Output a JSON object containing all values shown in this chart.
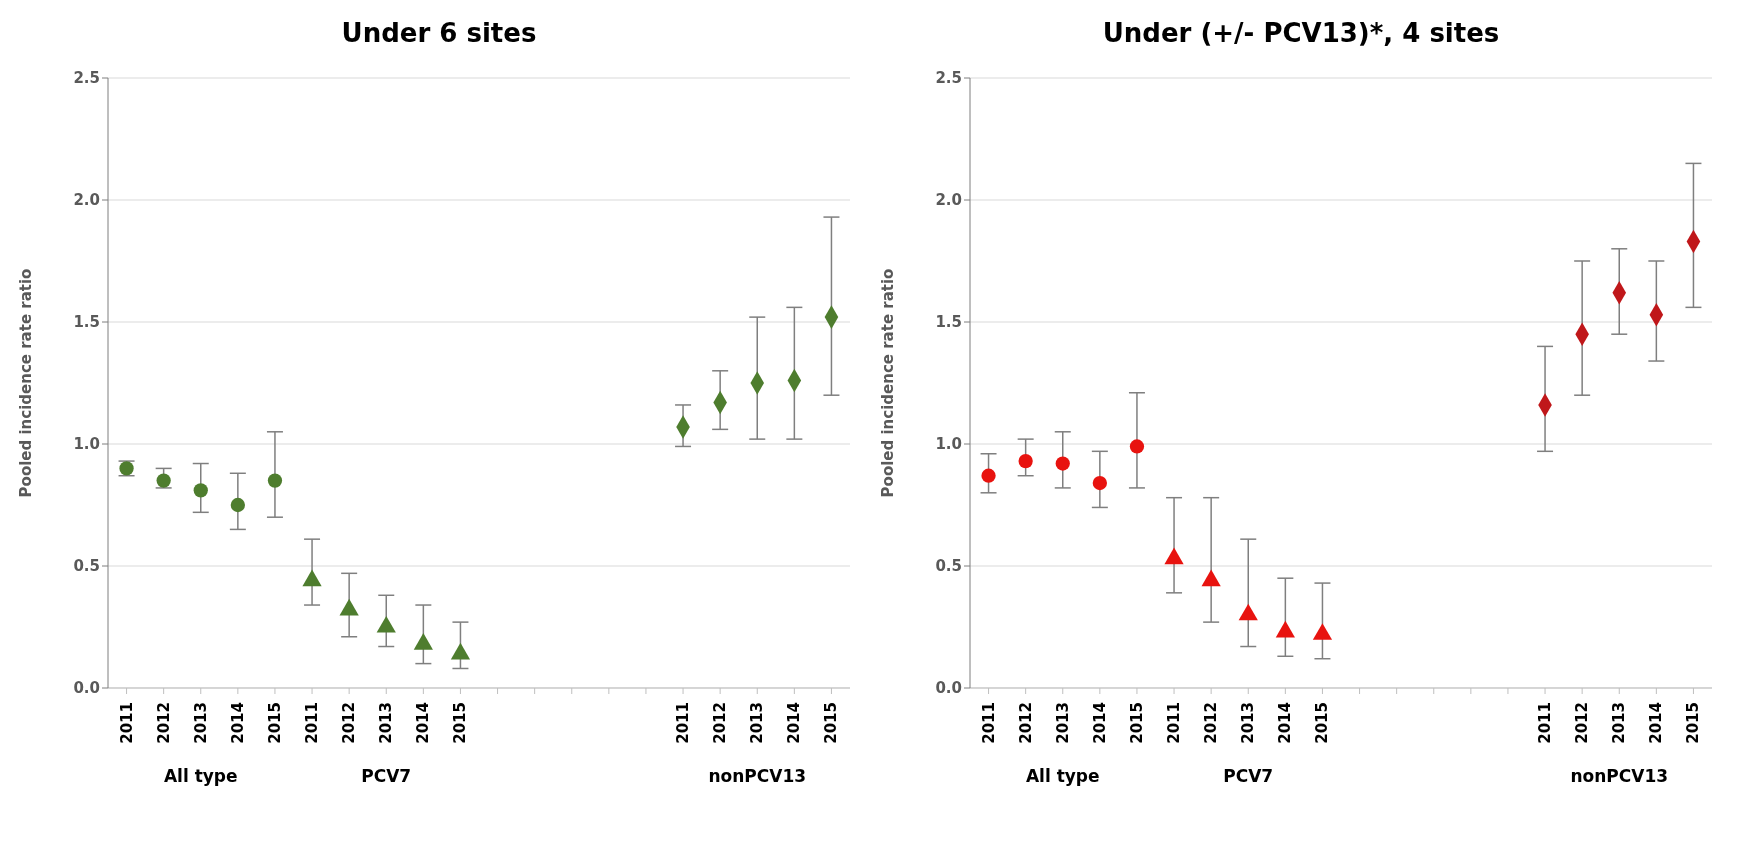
{
  "chart_data": [
    {
      "type": "scatter",
      "title": "Under 6 sites",
      "ylabel": "Pooled incidence rate ratio",
      "categories": [
        "2011",
        "2012",
        "2013",
        "2014",
        "2015",
        "2011",
        "2012",
        "2013",
        "2014",
        "2015",
        null,
        null,
        null,
        null,
        null,
        "2011",
        "2012",
        "2013",
        "2014",
        "2015"
      ],
      "ylim": [
        0,
        2.5
      ],
      "yticks": [
        {
          "value": 0,
          "label": "0.0"
        },
        {
          "value": 0.5,
          "label": "0.5"
        },
        {
          "value": 1,
          "label": "1.0"
        },
        {
          "value": 1.5,
          "label": "1.5"
        },
        {
          "value": 2,
          "label": "2.0"
        },
        {
          "value": 2.5,
          "label": "2.5"
        }
      ],
      "grid": "y",
      "legend": false,
      "annotations": [
        "All type",
        "PCV7",
        "nonPCV13"
      ],
      "series": [
        {
          "color": "#4e7d2e",
          "marker": "circle",
          "values": [
            0.9,
            0.85,
            0.81,
            0.75,
            0.85,
            null,
            null,
            null,
            null,
            null,
            null,
            null,
            null,
            null,
            null,
            null,
            null,
            null,
            null,
            null
          ],
          "errors": [
            [
              0.87,
              0.93
            ],
            [
              0.82,
              0.9
            ],
            [
              0.72,
              0.92
            ],
            [
              0.65,
              0.88
            ],
            [
              0.7,
              1.05
            ],
            null,
            null,
            null,
            null,
            null,
            null,
            null,
            null,
            null,
            null,
            null,
            null,
            null,
            null,
            null
          ]
        },
        {
          "color": "#4e7d2e",
          "marker": "triangle",
          "values": [
            null,
            null,
            null,
            null,
            null,
            0.44,
            0.32,
            0.25,
            0.18,
            0.14,
            null,
            null,
            null,
            null,
            null,
            null,
            null,
            null,
            null,
            null
          ],
          "errors": [
            null,
            null,
            null,
            null,
            null,
            [
              0.34,
              0.61
            ],
            [
              0.21,
              0.47
            ],
            [
              0.17,
              0.38
            ],
            [
              0.1,
              0.34
            ],
            [
              0.08,
              0.27
            ],
            null,
            null,
            null,
            null,
            null,
            null,
            null,
            null,
            null,
            null
          ]
        },
        {
          "color": "#4e7d2e",
          "marker": "diamond",
          "values": [
            null,
            null,
            null,
            null,
            null,
            null,
            null,
            null,
            null,
            null,
            null,
            null,
            null,
            null,
            null,
            1.07,
            1.17,
            1.25,
            1.26,
            1.52
          ],
          "errors": [
            null,
            null,
            null,
            null,
            null,
            null,
            null,
            null,
            null,
            null,
            null,
            null,
            null,
            null,
            null,
            [
              0.99,
              1.16
            ],
            [
              1.06,
              1.3
            ],
            [
              1.02,
              1.52
            ],
            [
              1.02,
              1.56
            ],
            [
              1.2,
              1.93
            ]
          ]
        }
      ]
    },
    {
      "type": "scatter",
      "title": "Under (+/- PCV13)*, 4 sites",
      "ylabel": "Pooled incidence rate ratio",
      "categories": [
        "2011",
        "2012",
        "2013",
        "2014",
        "2015",
        "2011",
        "2012",
        "2013",
        "2014",
        "2015",
        null,
        null,
        null,
        null,
        null,
        "2011",
        "2012",
        "2013",
        "2014",
        "2015"
      ],
      "ylim": [
        0,
        2.5
      ],
      "yticks": [
        {
          "value": 0,
          "label": "0.0"
        },
        {
          "value": 0.5,
          "label": "0.5"
        },
        {
          "value": 1,
          "label": "1.0"
        },
        {
          "value": 1.5,
          "label": "1.5"
        },
        {
          "value": 2,
          "label": "2.0"
        },
        {
          "value": 2.5,
          "label": "2.5"
        }
      ],
      "grid": "y",
      "legend": false,
      "annotations": [
        "All type",
        "PCV7",
        "nonPCV13"
      ],
      "series": [
        {
          "color": "#e8130f",
          "marker": "circle",
          "values": [
            0.87,
            0.93,
            0.92,
            0.84,
            0.99,
            null,
            null,
            null,
            null,
            null,
            null,
            null,
            null,
            null,
            null,
            null,
            null,
            null,
            null,
            null
          ],
          "errors": [
            [
              0.8,
              0.96
            ],
            [
              0.87,
              1.02
            ],
            [
              0.82,
              1.05
            ],
            [
              0.74,
              0.97
            ],
            [
              0.82,
              1.21
            ],
            null,
            null,
            null,
            null,
            null,
            null,
            null,
            null,
            null,
            null,
            null,
            null,
            null,
            null,
            null
          ]
        },
        {
          "color": "#e8130f",
          "marker": "triangle",
          "values": [
            null,
            null,
            null,
            null,
            null,
            0.53,
            0.44,
            0.3,
            0.23,
            0.22,
            null,
            null,
            null,
            null,
            null,
            null,
            null,
            null,
            null,
            null
          ],
          "errors": [
            null,
            null,
            null,
            null,
            null,
            [
              0.39,
              0.78
            ],
            [
              0.27,
              0.78
            ],
            [
              0.17,
              0.61
            ],
            [
              0.13,
              0.45
            ],
            [
              0.12,
              0.43
            ],
            null,
            null,
            null,
            null,
            null,
            null,
            null,
            null,
            null,
            null
          ]
        },
        {
          "color": "#c0171a",
          "marker": "diamond",
          "values": [
            null,
            null,
            null,
            null,
            null,
            null,
            null,
            null,
            null,
            null,
            null,
            null,
            null,
            null,
            null,
            1.16,
            1.45,
            1.62,
            1.53,
            1.83
          ],
          "errors": [
            null,
            null,
            null,
            null,
            null,
            null,
            null,
            null,
            null,
            null,
            null,
            null,
            null,
            null,
            null,
            [
              0.97,
              1.4
            ],
            [
              1.2,
              1.75
            ],
            [
              1.45,
              1.8
            ],
            [
              1.34,
              1.75
            ],
            [
              1.56,
              2.15
            ]
          ]
        }
      ]
    }
  ]
}
